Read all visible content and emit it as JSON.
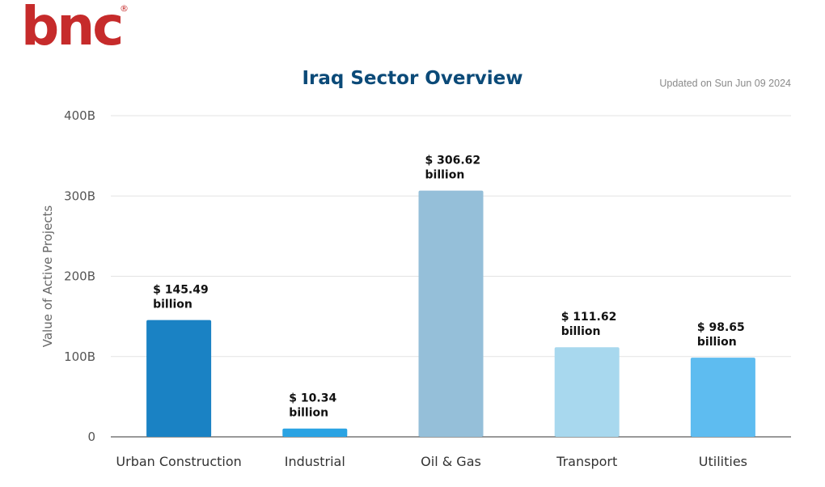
{
  "brand": {
    "logo_text": "bnc",
    "logo_mark": "®",
    "logo_color": "#c62b2b"
  },
  "updated_note": "Updated on Sun Jun 09 2024",
  "chart_data": {
    "type": "bar",
    "title": "Iraq Sector Overview",
    "ylabel": "Value of Active Projects",
    "xlabel": "",
    "ylim": [
      0,
      400
    ],
    "yticks": [
      0,
      100,
      200,
      300,
      400
    ],
    "ytick_labels": [
      "0",
      "100B",
      "200B",
      "300B",
      "400B"
    ],
    "grid": true,
    "legend": "none",
    "categories": [
      "Urban Construction",
      "Industrial",
      "Oil & Gas",
      "Transport",
      "Utilities"
    ],
    "values": [
      145.49,
      10.34,
      306.62,
      111.62,
      98.65
    ],
    "data_labels": [
      [
        "$ 145.49",
        "billion"
      ],
      [
        "$ 10.34",
        "billion"
      ],
      [
        "$ 306.62",
        "billion"
      ],
      [
        "$ 111.62",
        "billion"
      ],
      [
        "$ 98.65",
        "billion"
      ]
    ],
    "colors": [
      "#1a82c4",
      "#2aa3e3",
      "#95bfd9",
      "#a8d8ee",
      "#5ebcf0"
    ]
  }
}
